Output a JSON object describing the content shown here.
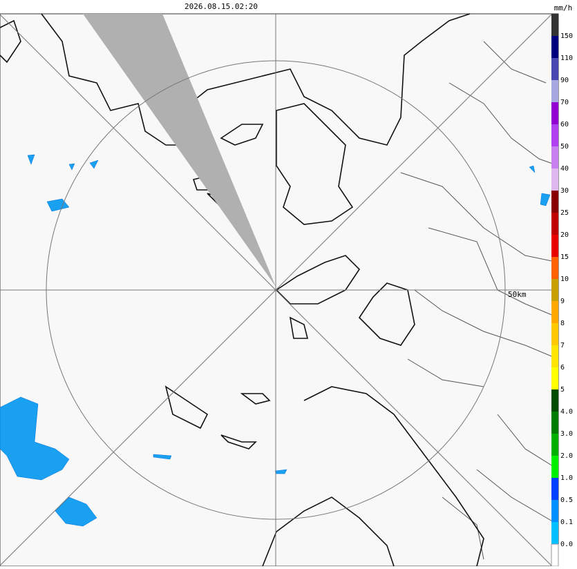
{
  "header": {
    "timestamp": "2026.08.15.02:20",
    "unit": "mm/h"
  },
  "map": {
    "range_label": "50km"
  },
  "legend": {
    "labels": [
      "150",
      "110",
      "90",
      "70",
      "60",
      "50",
      "40",
      "30",
      "25",
      "20",
      "15",
      "10",
      "9",
      "8",
      "7",
      "6",
      "5",
      "4.0",
      "3.0",
      "2.0",
      "1.0",
      "0.5",
      "0.1",
      "0.0"
    ]
  }
}
